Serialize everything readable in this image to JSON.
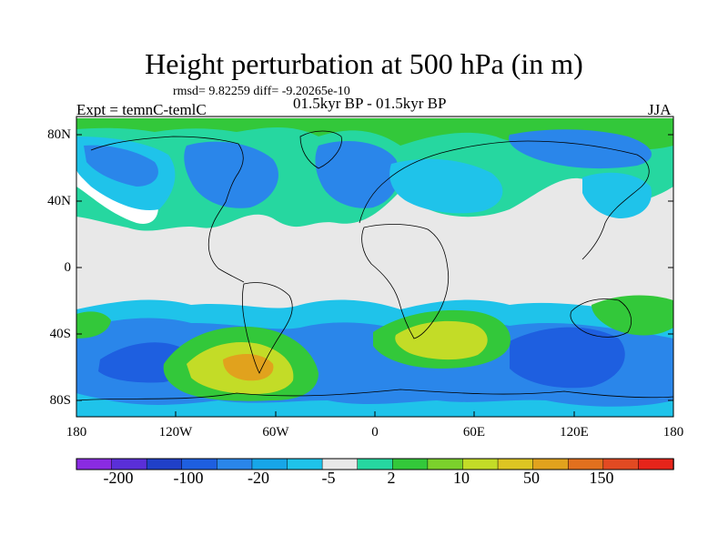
{
  "title": "Height perturbation at 500 hPa (in m)",
  "stats": "rmsd= 9.82259 diff= -9.20265e-10",
  "left_label": "Expt = temnC-temlC",
  "center_label": "01.5kyr BP - 01.5kyr BP",
  "season": "JJA",
  "y_ticks": [
    "80N",
    "40N",
    "0",
    "40S",
    "80S"
  ],
  "x_ticks": [
    "180",
    "120W",
    "60W",
    "0",
    "60E",
    "120E",
    "180"
  ],
  "colorbar": {
    "colors": [
      "#8a2be2",
      "#5a2fd8",
      "#2040c8",
      "#1e5fe0",
      "#2a86ea",
      "#17a6e8",
      "#1fc3ea",
      "#e8e8e8",
      "#26d7a0",
      "#33c83a",
      "#7bd12c",
      "#c3dc27",
      "#ddc522",
      "#e1a21d",
      "#e2701e",
      "#e24a22",
      "#e6241a"
    ],
    "labels": [
      "-200",
      "-100",
      "-20",
      "-5",
      "2",
      "10",
      "50",
      "150"
    ]
  },
  "palette": {
    "neutral": "#e8e8e8",
    "blue_dark": "#1e5fe0",
    "blue": "#2a86ea",
    "cyan": "#1fc3ea",
    "teal": "#26d7a0",
    "green": "#33c83a",
    "lime": "#c3dc27",
    "yellow": "#ddc522",
    "orange": "#e1a21d",
    "white": "#ffffff",
    "land_line": "#000000"
  }
}
